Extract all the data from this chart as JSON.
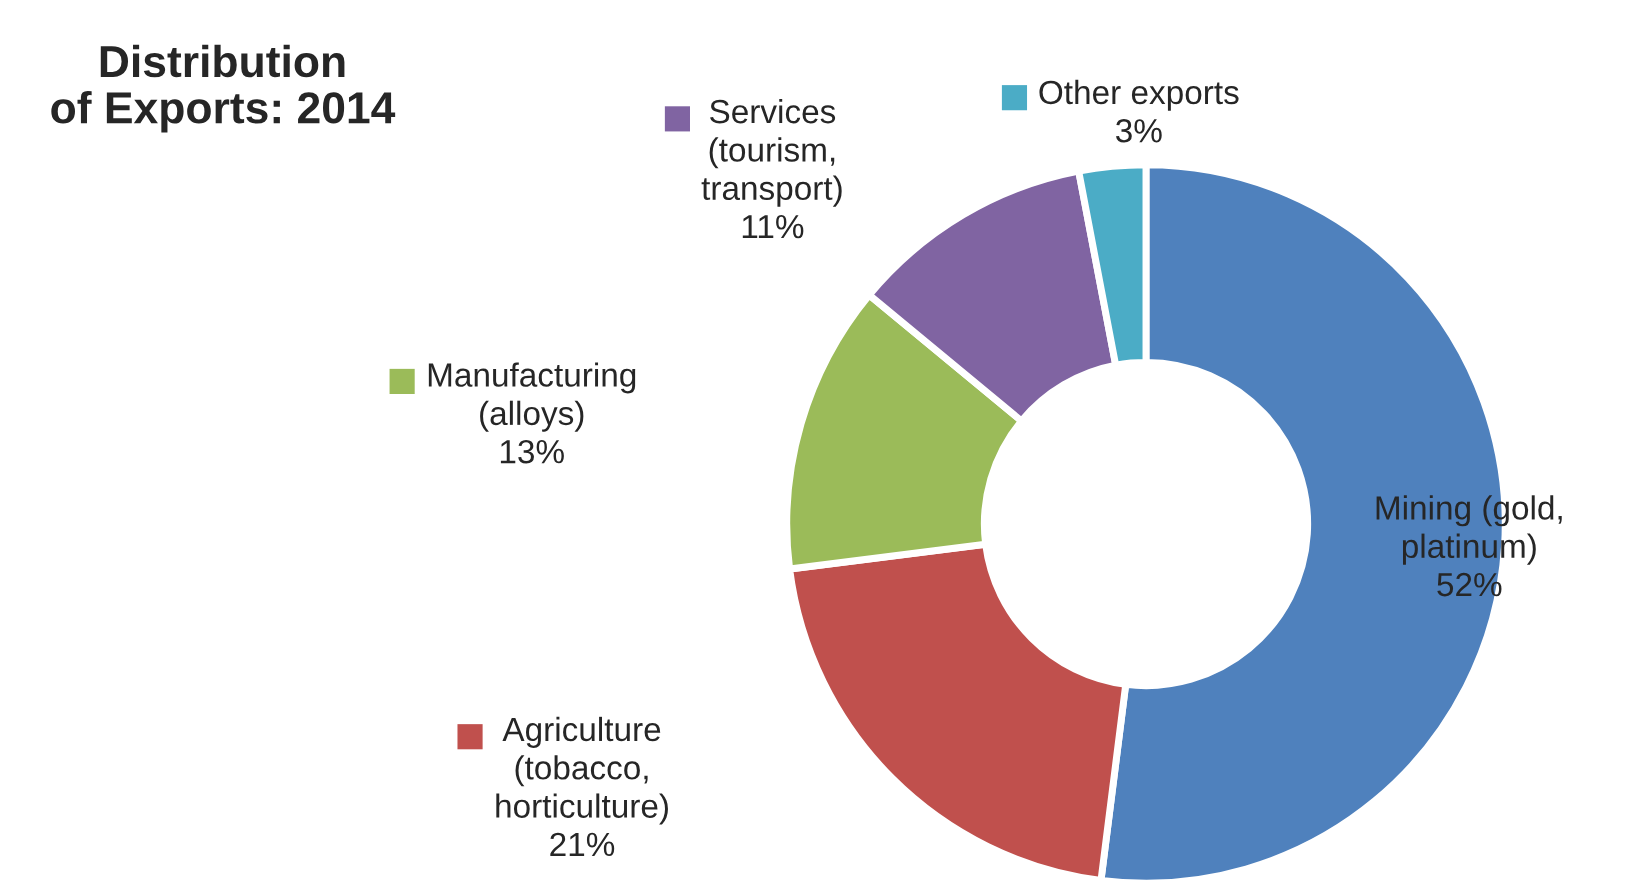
{
  "chart_data": {
    "type": "donut",
    "title": "Distribution\nof Exports: 2014",
    "categories": [
      "Mining (gold,\nplatinum)",
      "Agriculture\n(tobacco,\nhorticulture)",
      "Manufacturing\n(alloys)",
      "Services\n(tourism,\ntransport)",
      "Other exports"
    ],
    "values": [
      52,
      21,
      13,
      11,
      3
    ],
    "value_labels": [
      "52%",
      "21%",
      "13%",
      "11%",
      "3%"
    ],
    "colors": [
      "#4f81bd",
      "#c0504d",
      "#9bbb59",
      "#8064a2",
      "#4bacc6"
    ],
    "legend": "left"
  }
}
